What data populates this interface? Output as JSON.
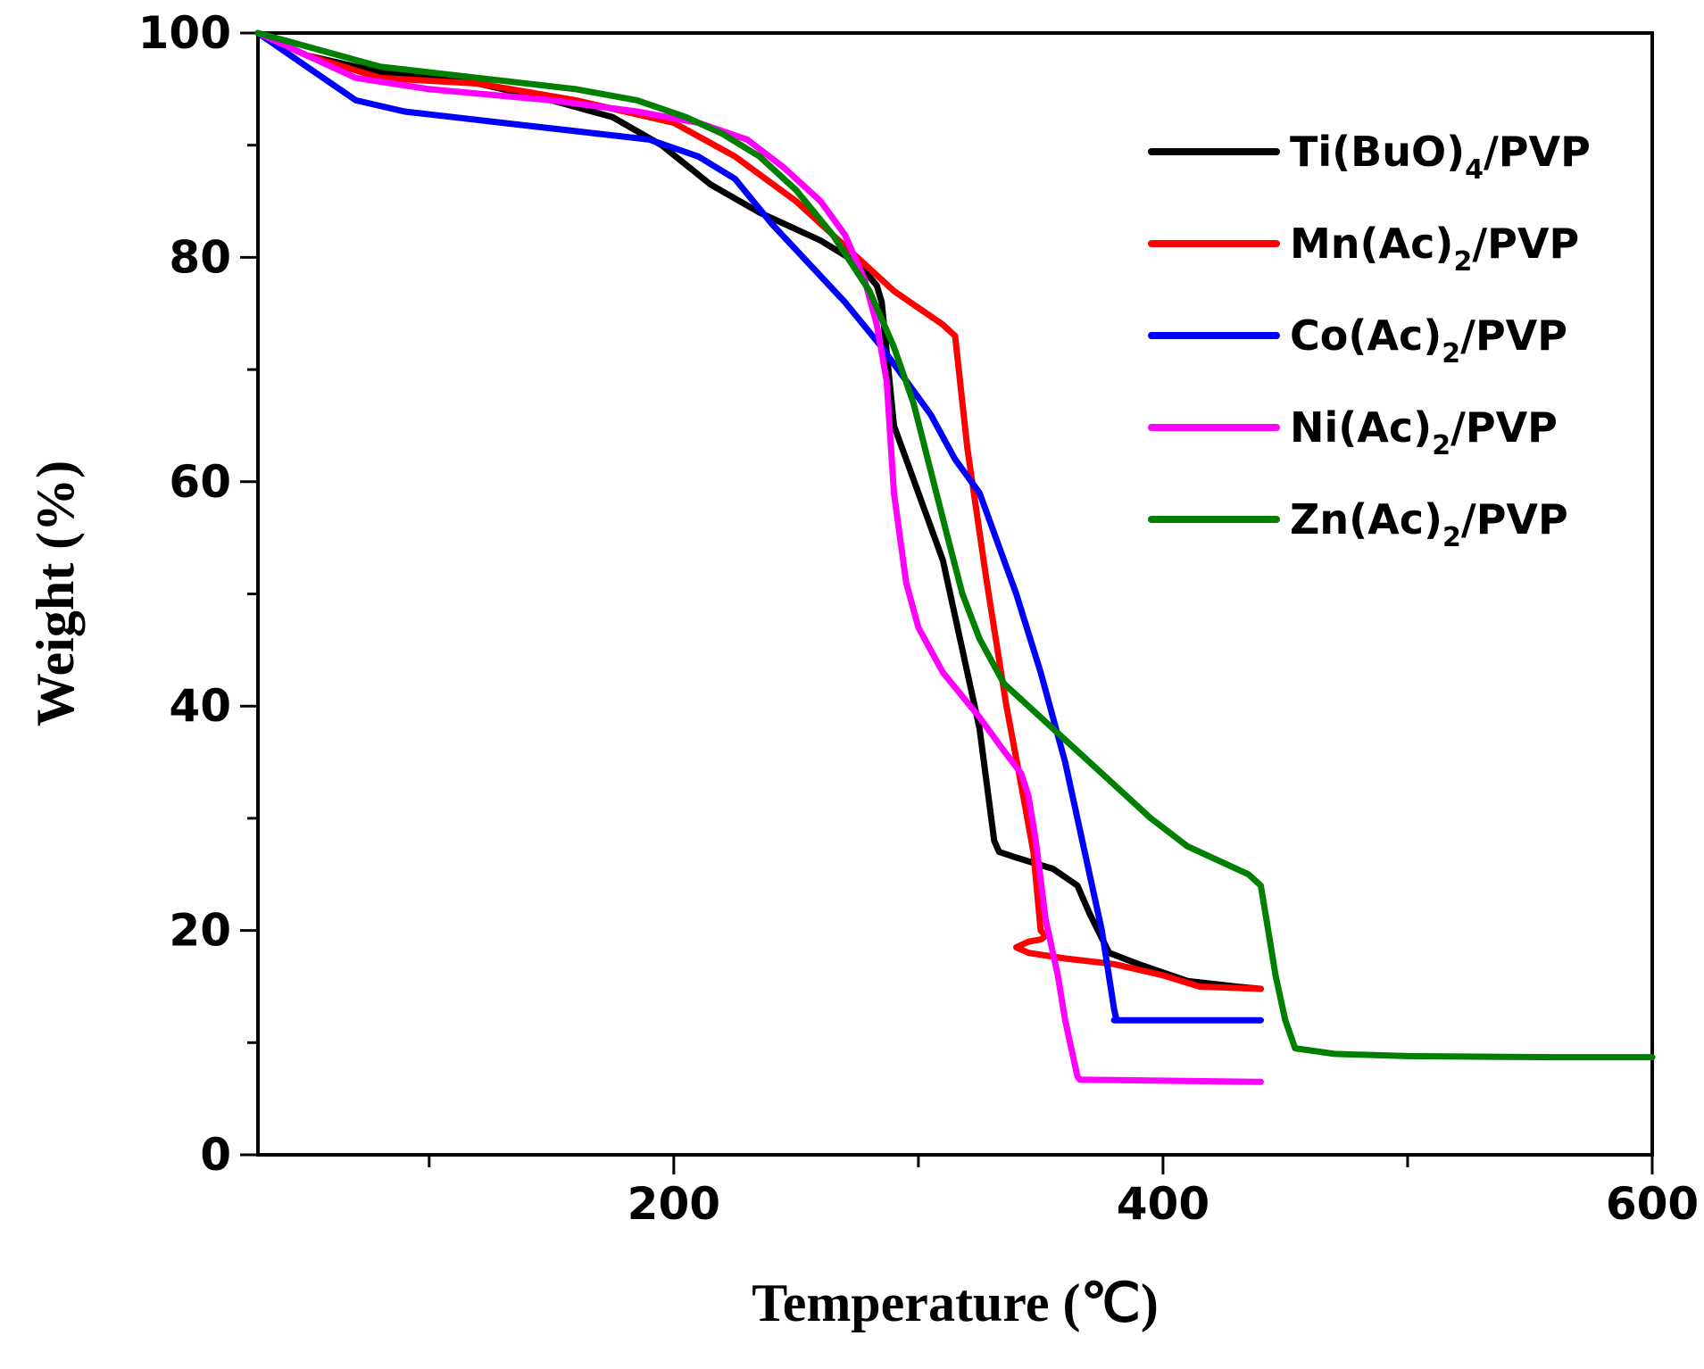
{
  "chart_data": {
    "type": "line",
    "title": "",
    "xlabel": "Temperature (℃)",
    "ylabel": "Weight (%)",
    "xlim": [
      30,
      600
    ],
    "ylim": [
      0,
      100
    ],
    "x_ticks": [
      200,
      400,
      600
    ],
    "y_ticks": [
      0,
      20,
      40,
      60,
      80,
      100
    ],
    "legend_position": "top-right",
    "series": [
      {
        "name": "Ti(BuO)4/PVP",
        "label_main": "Ti(BuO)",
        "label_sub": "4",
        "label_tail": "/PVP",
        "color": "#000000",
        "points": [
          [
            30,
            100
          ],
          [
            50,
            98
          ],
          [
            80,
            96.5
          ],
          [
            120,
            95.5
          ],
          [
            150,
            94
          ],
          [
            175,
            92.5
          ],
          [
            195,
            90
          ],
          [
            215,
            86.5
          ],
          [
            235,
            84
          ],
          [
            260,
            81.5
          ],
          [
            275,
            79.5
          ],
          [
            283,
            77.5
          ],
          [
            285,
            76
          ],
          [
            290,
            65
          ],
          [
            300,
            59
          ],
          [
            310,
            53
          ],
          [
            315,
            48
          ],
          [
            320,
            43
          ],
          [
            325,
            38
          ],
          [
            328,
            33
          ],
          [
            331,
            28
          ],
          [
            333,
            27
          ],
          [
            340,
            26.5
          ],
          [
            355,
            25.5
          ],
          [
            365,
            24
          ],
          [
            370,
            21.5
          ],
          [
            378,
            18
          ],
          [
            390,
            17
          ],
          [
            410,
            15.5
          ],
          [
            430,
            15
          ],
          [
            440,
            14.8
          ]
        ]
      },
      {
        "name": "Mn(Ac)2/PVP",
        "label_main": "Mn(Ac)",
        "label_sub": "2",
        "label_tail": "/PVP",
        "color": "#ff0000",
        "points": [
          [
            30,
            100
          ],
          [
            50,
            98
          ],
          [
            80,
            96
          ],
          [
            120,
            95.5
          ],
          [
            160,
            94
          ],
          [
            200,
            92
          ],
          [
            225,
            89
          ],
          [
            250,
            85
          ],
          [
            270,
            81
          ],
          [
            290,
            77
          ],
          [
            310,
            74
          ],
          [
            315,
            73
          ],
          [
            320,
            63
          ],
          [
            328,
            51
          ],
          [
            336,
            40
          ],
          [
            342,
            33
          ],
          [
            347,
            27
          ],
          [
            350,
            20
          ],
          [
            352,
            19.5
          ],
          [
            350,
            19.2
          ],
          [
            345,
            19
          ],
          [
            340,
            18.5
          ],
          [
            345,
            18
          ],
          [
            360,
            17.5
          ],
          [
            380,
            17
          ],
          [
            400,
            16
          ],
          [
            415,
            15
          ],
          [
            440,
            14.8
          ]
        ]
      },
      {
        "name": "Co(Ac)2/PVP",
        "label_main": "Co(Ac)",
        "label_sub": "2",
        "label_tail": "/PVP",
        "color": "#0000ff",
        "points": [
          [
            30,
            100
          ],
          [
            50,
            97
          ],
          [
            70,
            94
          ],
          [
            90,
            93
          ],
          [
            130,
            92
          ],
          [
            170,
            91
          ],
          [
            190,
            90.5
          ],
          [
            210,
            89
          ],
          [
            225,
            87
          ],
          [
            240,
            83
          ],
          [
            255,
            79.5
          ],
          [
            270,
            76
          ],
          [
            285,
            72
          ],
          [
            305,
            66
          ],
          [
            315,
            62
          ],
          [
            325,
            59
          ],
          [
            330,
            56
          ],
          [
            340,
            50
          ],
          [
            350,
            43
          ],
          [
            360,
            35
          ],
          [
            368,
            27
          ],
          [
            375,
            20
          ],
          [
            380,
            13
          ],
          [
            381,
            12
          ],
          [
            380,
            12
          ],
          [
            440,
            12
          ]
        ]
      },
      {
        "name": "Ni(Ac)2/PVP",
        "label_main": "Ni(Ac)",
        "label_sub": "2",
        "label_tail": "/PVP",
        "color": "#ff00ff",
        "points": [
          [
            30,
            100
          ],
          [
            50,
            98
          ],
          [
            70,
            96
          ],
          [
            100,
            95
          ],
          [
            150,
            94
          ],
          [
            185,
            93
          ],
          [
            210,
            92
          ],
          [
            230,
            90.5
          ],
          [
            245,
            88
          ],
          [
            260,
            85
          ],
          [
            270,
            82
          ],
          [
            278,
            78
          ],
          [
            283,
            74
          ],
          [
            287,
            69
          ],
          [
            290,
            59
          ],
          [
            295,
            51
          ],
          [
            300,
            47
          ],
          [
            310,
            43
          ],
          [
            325,
            39
          ],
          [
            335,
            36
          ],
          [
            342,
            34
          ],
          [
            345,
            32
          ],
          [
            348,
            28
          ],
          [
            352,
            21
          ],
          [
            357,
            16
          ],
          [
            360,
            12
          ],
          [
            363,
            9
          ],
          [
            365,
            7
          ],
          [
            366,
            6.7
          ],
          [
            440,
            6.5
          ]
        ]
      },
      {
        "name": "Zn(Ac)2/PVP",
        "label_main": "Zn(Ac)",
        "label_sub": "2",
        "label_tail": "/PVP",
        "color": "#007f00",
        "points": [
          [
            30,
            100
          ],
          [
            55,
            98.5
          ],
          [
            80,
            97
          ],
          [
            120,
            96
          ],
          [
            160,
            95
          ],
          [
            185,
            94
          ],
          [
            205,
            92.5
          ],
          [
            220,
            91
          ],
          [
            235,
            89
          ],
          [
            250,
            86
          ],
          [
            265,
            82
          ],
          [
            280,
            77
          ],
          [
            290,
            72
          ],
          [
            298,
            67
          ],
          [
            305,
            61
          ],
          [
            312,
            55
          ],
          [
            318,
            50
          ],
          [
            325,
            46
          ],
          [
            335,
            42
          ],
          [
            350,
            39
          ],
          [
            365,
            36
          ],
          [
            380,
            33
          ],
          [
            395,
            30
          ],
          [
            410,
            27.5
          ],
          [
            425,
            26
          ],
          [
            435,
            25
          ],
          [
            440,
            24
          ],
          [
            443,
            20
          ],
          [
            446,
            16
          ],
          [
            450,
            12
          ],
          [
            454,
            9.5
          ],
          [
            470,
            9
          ],
          [
            500,
            8.8
          ],
          [
            560,
            8.7
          ],
          [
            600,
            8.7
          ]
        ]
      }
    ]
  }
}
